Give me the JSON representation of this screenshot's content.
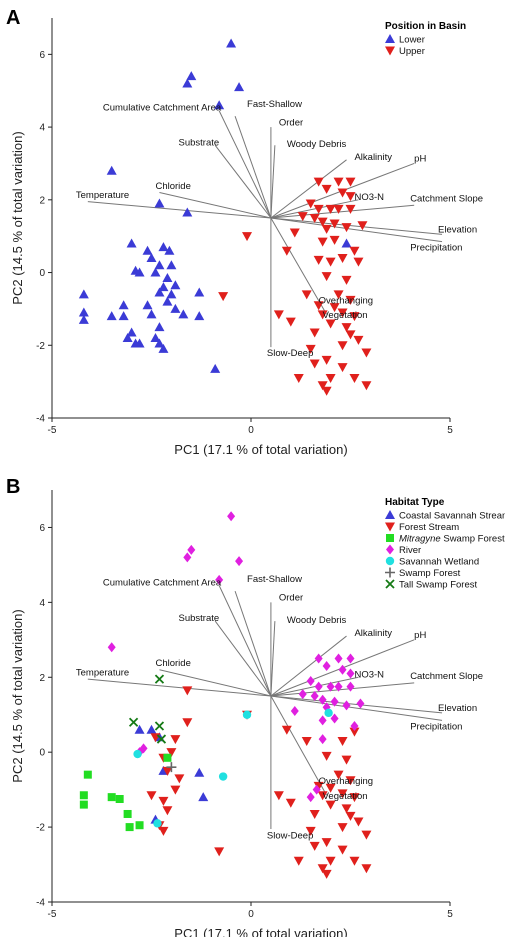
{
  "chart_data": [
    {
      "panel": "A",
      "type": "scatter",
      "xlabel": "PC1 (17.1 % of total variation)",
      "ylabel": "PC2 (14.5 % of total variation)",
      "xlim": [
        -5,
        5
      ],
      "ylim": [
        -4,
        7
      ],
      "xticks": [
        -5,
        0,
        5
      ],
      "yticks": [
        -4,
        -2,
        0,
        2,
        4,
        6
      ],
      "grid": false,
      "legend_title": "Position in Basin",
      "legend_position": "top-right",
      "series": [
        {
          "name": "Lower",
          "marker": "triangle-up",
          "color": "#3b3bd6",
          "points": [
            [
              -0.5,
              6.3
            ],
            [
              -1.5,
              5.4
            ],
            [
              -1.6,
              5.2
            ],
            [
              -0.3,
              5.1
            ],
            [
              -0.8,
              4.6
            ],
            [
              -3.5,
              2.8
            ],
            [
              -2.3,
              1.9
            ],
            [
              -1.6,
              1.65
            ],
            [
              -3.0,
              0.8
            ],
            [
              -2.6,
              0.6
            ],
            [
              -2.2,
              0.7
            ],
            [
              -2.05,
              0.6
            ],
            [
              -2.5,
              0.4
            ],
            [
              -2.3,
              0.2
            ],
            [
              -2.0,
              0.2
            ],
            [
              -2.8,
              0.0
            ],
            [
              -2.9,
              0.05
            ],
            [
              -2.4,
              0.0
            ],
            [
              -2.1,
              -0.15
            ],
            [
              -2.2,
              -0.4
            ],
            [
              -1.9,
              -0.35
            ],
            [
              -2.0,
              -0.6
            ],
            [
              -2.3,
              -0.55
            ],
            [
              -1.3,
              -0.55
            ],
            [
              -4.2,
              -0.6
            ],
            [
              -3.2,
              -0.9
            ],
            [
              -2.6,
              -0.9
            ],
            [
              -2.1,
              -0.8
            ],
            [
              -1.9,
              -1.0
            ],
            [
              -4.2,
              -1.1
            ],
            [
              -3.5,
              -1.2
            ],
            [
              -3.2,
              -1.2
            ],
            [
              -2.5,
              -1.15
            ],
            [
              -1.7,
              -1.15
            ],
            [
              -1.3,
              -1.2
            ],
            [
              -4.2,
              -1.3
            ],
            [
              -2.3,
              -1.5
            ],
            [
              -3.0,
              -1.65
            ],
            [
              -3.1,
              -1.8
            ],
            [
              -2.4,
              -1.8
            ],
            [
              -2.8,
              -1.95
            ],
            [
              -2.9,
              -1.95
            ],
            [
              -2.3,
              -1.95
            ],
            [
              -2.2,
              -2.1
            ],
            [
              -0.9,
              -2.65
            ],
            [
              2.4,
              0.8
            ]
          ]
        },
        {
          "name": "Upper",
          "marker": "triangle-down",
          "color": "#e0201c",
          "points": [
            [
              1.7,
              2.5
            ],
            [
              2.2,
              2.5
            ],
            [
              2.5,
              2.5
            ],
            [
              1.9,
              2.3
            ],
            [
              2.3,
              2.2
            ],
            [
              2.5,
              2.1
            ],
            [
              1.5,
              1.9
            ],
            [
              1.7,
              1.75
            ],
            [
              2.0,
              1.75
            ],
            [
              2.2,
              1.75
            ],
            [
              2.5,
              1.75
            ],
            [
              1.3,
              1.55
            ],
            [
              1.6,
              1.5
            ],
            [
              1.8,
              1.4
            ],
            [
              2.1,
              1.35
            ],
            [
              2.4,
              1.25
            ],
            [
              2.8,
              1.3
            ],
            [
              1.1,
              1.1
            ],
            [
              1.9,
              1.2
            ],
            [
              2.1,
              0.9
            ],
            [
              1.8,
              0.85
            ],
            [
              -0.1,
              1.0
            ],
            [
              0.9,
              0.6
            ],
            [
              2.6,
              0.6
            ],
            [
              2.3,
              0.4
            ],
            [
              2.0,
              0.3
            ],
            [
              1.7,
              0.35
            ],
            [
              2.7,
              0.3
            ],
            [
              1.9,
              -0.1
            ],
            [
              2.4,
              -0.2
            ],
            [
              1.4,
              -0.6
            ],
            [
              -0.7,
              -0.65
            ],
            [
              2.2,
              -0.6
            ],
            [
              2.5,
              -0.75
            ],
            [
              1.7,
              -0.9
            ],
            [
              2.1,
              -0.95
            ],
            [
              0.7,
              -1.15
            ],
            [
              1.8,
              -1.15
            ],
            [
              2.3,
              -1.1
            ],
            [
              2.6,
              -1.2
            ],
            [
              1.0,
              -1.35
            ],
            [
              2.0,
              -1.4
            ],
            [
              2.4,
              -1.5
            ],
            [
              1.6,
              -1.65
            ],
            [
              2.5,
              -1.7
            ],
            [
              2.7,
              -1.85
            ],
            [
              2.3,
              -2.0
            ],
            [
              1.5,
              -2.1
            ],
            [
              1.9,
              -2.4
            ],
            [
              2.9,
              -2.2
            ],
            [
              1.6,
              -2.5
            ],
            [
              2.3,
              -2.6
            ],
            [
              1.2,
              -2.9
            ],
            [
              2.0,
              -2.9
            ],
            [
              2.6,
              -2.9
            ],
            [
              1.8,
              -3.1
            ],
            [
              2.9,
              -3.1
            ],
            [
              1.9,
              -3.25
            ]
          ]
        }
      ]
    },
    {
      "panel": "B",
      "type": "scatter",
      "xlabel": "PC1 (17.1 % of total variation)",
      "ylabel": "PC2 (14.5 % of total variation)",
      "xlim": [
        -5,
        5
      ],
      "ylim": [
        -4,
        7
      ],
      "xticks": [
        -5,
        0,
        5
      ],
      "yticks": [
        -4,
        -2,
        0,
        2,
        4,
        6
      ],
      "grid": false,
      "legend_title": "Habitat Type",
      "legend_position": "top-right",
      "series": [
        {
          "name": "Coastal Savannah Stream",
          "marker": "triangle-up",
          "color": "#3b3bd6",
          "points": [
            [
              -2.5,
              0.6
            ],
            [
              -2.8,
              0.6
            ],
            [
              -2.3,
              0.4
            ],
            [
              -2.2,
              -0.5
            ],
            [
              -1.3,
              -0.55
            ],
            [
              -1.2,
              -1.2
            ],
            [
              -2.4,
              -1.8
            ]
          ]
        },
        {
          "name": "Forest Stream",
          "marker": "triangle-down",
          "color": "#e0201c",
          "points": [
            [
              -1.6,
              1.65
            ],
            [
              -1.6,
              0.8
            ],
            [
              -1.9,
              0.35
            ],
            [
              -2.4,
              0.4
            ],
            [
              -2.0,
              0.0
            ],
            [
              -2.2,
              -0.15
            ],
            [
              -2.1,
              -0.5
            ],
            [
              -1.8,
              -0.7
            ],
            [
              -1.9,
              -1.0
            ],
            [
              -2.5,
              -1.15
            ],
            [
              -2.2,
              -1.3
            ],
            [
              -2.1,
              -1.55
            ],
            [
              -2.3,
              -1.95
            ],
            [
              -2.2,
              -2.1
            ],
            [
              -0.8,
              -2.65
            ],
            [
              -0.1,
              1.0
            ],
            [
              0.9,
              0.6
            ],
            [
              2.6,
              0.55
            ],
            [
              1.4,
              0.3
            ],
            [
              2.3,
              0.3
            ],
            [
              1.9,
              -0.1
            ],
            [
              2.4,
              -0.2
            ],
            [
              2.2,
              -0.6
            ],
            [
              2.5,
              -0.75
            ],
            [
              1.7,
              -0.9
            ],
            [
              2.0,
              -0.95
            ],
            [
              0.7,
              -1.15
            ],
            [
              1.8,
              -1.15
            ],
            [
              2.3,
              -1.1
            ],
            [
              2.6,
              -1.2
            ],
            [
              1.0,
              -1.35
            ],
            [
              2.0,
              -1.4
            ],
            [
              2.4,
              -1.5
            ],
            [
              1.6,
              -1.65
            ],
            [
              2.5,
              -1.7
            ],
            [
              2.7,
              -1.85
            ],
            [
              2.3,
              -2.0
            ],
            [
              1.5,
              -2.1
            ],
            [
              1.9,
              -2.4
            ],
            [
              2.9,
              -2.2
            ],
            [
              1.6,
              -2.5
            ],
            [
              2.3,
              -2.6
            ],
            [
              1.2,
              -2.9
            ],
            [
              2.0,
              -2.9
            ],
            [
              2.6,
              -2.9
            ],
            [
              1.8,
              -3.1
            ],
            [
              2.9,
              -3.1
            ],
            [
              1.9,
              -3.25
            ]
          ]
        },
        {
          "name": "Mitragyne Swamp Forest",
          "name_italic_part": "Mitragyne",
          "marker": "square",
          "color": "#22dd22",
          "points": [
            [
              -4.2,
              -1.15
            ],
            [
              -4.2,
              -1.4
            ],
            [
              -4.1,
              -0.6
            ],
            [
              -3.5,
              -1.2
            ],
            [
              -3.3,
              -1.25
            ],
            [
              -3.1,
              -1.65
            ],
            [
              -3.05,
              -2.0
            ],
            [
              -2.8,
              -1.95
            ],
            [
              -2.1,
              -0.15
            ]
          ]
        },
        {
          "name": "River",
          "marker": "diamond",
          "color": "#e020e0",
          "points": [
            [
              -0.5,
              6.3
            ],
            [
              -1.5,
              5.4
            ],
            [
              -1.6,
              5.2
            ],
            [
              -0.3,
              5.1
            ],
            [
              -0.8,
              4.6
            ],
            [
              -3.5,
              2.8
            ],
            [
              -2.8,
              0.0
            ],
            [
              -2.7,
              0.1
            ],
            [
              1.7,
              2.5
            ],
            [
              2.2,
              2.5
            ],
            [
              2.5,
              2.5
            ],
            [
              1.9,
              2.3
            ],
            [
              2.3,
              2.2
            ],
            [
              2.5,
              2.1
            ],
            [
              1.5,
              1.9
            ],
            [
              1.7,
              1.75
            ],
            [
              2.0,
              1.75
            ],
            [
              2.2,
              1.75
            ],
            [
              2.5,
              1.75
            ],
            [
              1.3,
              1.55
            ],
            [
              1.6,
              1.5
            ],
            [
              1.8,
              1.4
            ],
            [
              2.1,
              1.35
            ],
            [
              2.4,
              1.25
            ],
            [
              2.75,
              1.3
            ],
            [
              1.1,
              1.1
            ],
            [
              1.9,
              1.2
            ],
            [
              2.1,
              0.9
            ],
            [
              1.8,
              0.85
            ],
            [
              2.6,
              0.7
            ],
            [
              1.8,
              0.35
            ],
            [
              1.65,
              -1.0
            ],
            [
              1.5,
              -1.2
            ]
          ]
        },
        {
          "name": "Savannah Wetland",
          "marker": "circle",
          "color": "#20e0e0",
          "points": [
            [
              -0.1,
              1.0
            ],
            [
              -2.85,
              -0.05
            ],
            [
              -0.7,
              -0.65
            ],
            [
              -2.35,
              -1.9
            ],
            [
              1.95,
              1.05
            ]
          ]
        },
        {
          "name": "Swamp Forest",
          "marker": "plus",
          "color": "#666666",
          "points": [
            [
              -2.0,
              -0.4
            ]
          ]
        },
        {
          "name": "Tall Swamp Forest",
          "marker": "x",
          "color": "#157a15",
          "points": [
            [
              -2.3,
              1.95
            ],
            [
              -2.95,
              0.8
            ],
            [
              -2.3,
              0.7
            ],
            [
              -2.25,
              0.35
            ]
          ]
        }
      ]
    }
  ],
  "biplot_vectors": [
    {
      "label": "Fast-Shallow",
      "end": [
        -0.4,
        4.3
      ]
    },
    {
      "label": "Order",
      "end": [
        0.5,
        4.0
      ]
    },
    {
      "label": "Cumulative Catchment Area",
      "end": [
        -0.8,
        4.45
      ]
    },
    {
      "label": "Woody Debris",
      "end": [
        0.6,
        3.5
      ]
    },
    {
      "label": "Substrate",
      "end": [
        -0.9,
        3.5
      ]
    },
    {
      "label": "Alkalinity",
      "end": [
        2.4,
        3.1
      ]
    },
    {
      "label": "pH",
      "end": [
        4.1,
        3.0
      ]
    },
    {
      "label": "Chloride",
      "end": [
        -2.3,
        2.2
      ]
    },
    {
      "label": "Temperature",
      "end": [
        -4.1,
        1.95
      ]
    },
    {
      "label": "NO3-N",
      "end": [
        2.7,
        2.0
      ]
    },
    {
      "label": "Catchment Slope",
      "end": [
        4.1,
        1.85
      ]
    },
    {
      "label": "Elevation",
      "end": [
        4.8,
        1.05
      ]
    },
    {
      "label": "Precipitation",
      "end": [
        4.8,
        0.85
      ]
    },
    {
      "label": "Overhanging Vegetation",
      "end": [
        1.9,
        -1.15
      ]
    },
    {
      "label": "Slow-Deep",
      "end": [
        0.5,
        -2.05
      ]
    }
  ],
  "vector_origin": [
    0.5,
    1.5
  ],
  "vector_labels": [
    {
      "text": "Fast-Shallow",
      "x": -0.1,
      "y": 4.55,
      "anchor": "start"
    },
    {
      "text": "Order",
      "x": 0.7,
      "y": 4.05,
      "anchor": "start"
    },
    {
      "text": "Cumulative Catchment Area",
      "x": -0.75,
      "y": 4.45,
      "anchor": "end"
    },
    {
      "text": "Woody Debris",
      "x": 0.9,
      "y": 3.45,
      "anchor": "start"
    },
    {
      "text": "Substrate",
      "x": -0.8,
      "y": 3.5,
      "anchor": "end"
    },
    {
      "text": "Alkalinity",
      "x": 2.6,
      "y": 3.1,
      "anchor": "start"
    },
    {
      "text": "pH",
      "x": 4.1,
      "y": 3.05,
      "anchor": "start"
    },
    {
      "text": "Chloride",
      "x": -2.4,
      "y": 2.3,
      "anchor": "start"
    },
    {
      "text": "Temperature",
      "x": -4.4,
      "y": 2.05,
      "anchor": "start"
    },
    {
      "text": "NO3-N",
      "x": 2.6,
      "y": 2.0,
      "anchor": "start"
    },
    {
      "text": "Catchment Slope",
      "x": 4.0,
      "y": 1.95,
      "anchor": "start"
    },
    {
      "text": "Elevation",
      "x": 4.7,
      "y": 1.1,
      "anchor": "start"
    },
    {
      "text": "Precipitation",
      "x": 4.0,
      "y": 0.6,
      "anchor": "start"
    },
    {
      "text": "Overhanging",
      "x": 1.7,
      "y": -0.85,
      "anchor": "start"
    },
    {
      "text": "Vegetation",
      "x": 1.8,
      "y": -1.25,
      "anchor": "start"
    },
    {
      "text": "Slow-Deep",
      "x": 0.4,
      "y": -2.3,
      "anchor": "start"
    }
  ]
}
